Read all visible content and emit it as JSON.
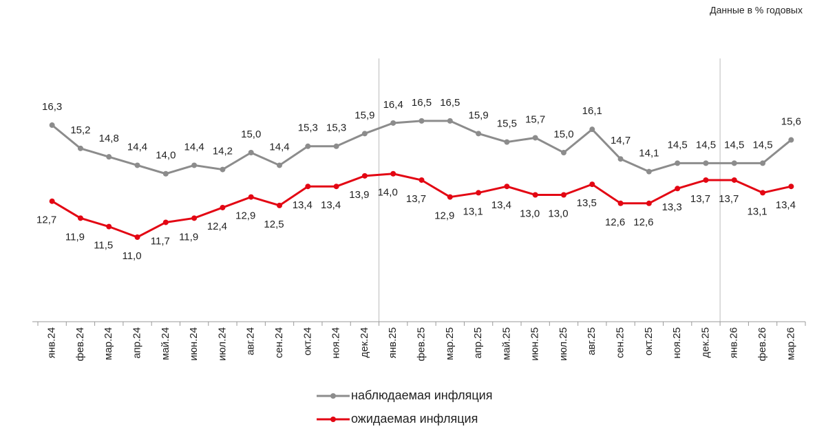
{
  "chart_data": {
    "type": "line",
    "note": "Данные в % годовых",
    "categories": [
      "янв.24",
      "фев.24",
      "мар.24",
      "апр.24",
      "май.24",
      "июн.24",
      "июл.24",
      "авг.24",
      "сен.24",
      "окт.24",
      "ноя.24",
      "дек.24",
      "янв.25",
      "фев.25",
      "мар.25",
      "апр.25",
      "май.25",
      "июн.25",
      "июл.25",
      "авг.25",
      "сен.25",
      "окт.25",
      "ноя.25",
      "дек.25",
      "янв.26",
      "фев.26",
      "мар.26"
    ],
    "series": [
      {
        "name": "наблюдаемая инфляция",
        "color": "#8c8c8c",
        "values": [
          16.3,
          15.2,
          14.8,
          14.4,
          14.0,
          14.4,
          14.2,
          15.0,
          14.4,
          15.3,
          15.3,
          15.9,
          16.4,
          16.5,
          16.5,
          15.9,
          15.5,
          15.7,
          15.0,
          16.1,
          14.7,
          14.1,
          14.5,
          14.5,
          14.5,
          14.5,
          15.6
        ],
        "value_labels": [
          "16,3",
          "15,2",
          "14,8",
          "14,4",
          "14,0",
          "14,4",
          "14,2",
          "15,0",
          "14,4",
          "15,3",
          "15,3",
          "15,9",
          "16,4",
          "16,5",
          "16,5",
          "15,9",
          "15,5",
          "15,7",
          "15,0",
          "16,1",
          "14,7",
          "14,1",
          "14,5",
          "14,5",
          "14,5",
          "14,5",
          "15,6"
        ]
      },
      {
        "name": "ожидаемая инфляция",
        "color": "#e30613",
        "values": [
          12.7,
          11.9,
          11.5,
          11.0,
          11.7,
          11.9,
          12.4,
          12.9,
          12.5,
          13.4,
          13.4,
          13.9,
          14.0,
          13.7,
          12.9,
          13.1,
          13.4,
          13.0,
          13.0,
          13.5,
          12.6,
          12.6,
          13.3,
          13.7,
          13.7,
          13.1,
          13.4
        ],
        "value_labels": [
          "12,7",
          "11,9",
          "11,5",
          "11,0",
          "11,7",
          "11,9",
          "12,4",
          "12,9",
          "12,5",
          "13,4",
          "13,4",
          "13,9",
          "14,0",
          "13,7",
          "12,9",
          "13,1",
          "13,4",
          "13,0",
          "13,0",
          "13,5",
          "12,6",
          "12,6",
          "13,3",
          "13,7",
          "13,7",
          "13,1",
          "13,4"
        ]
      }
    ],
    "ylim": [
      7,
      19
    ]
  }
}
